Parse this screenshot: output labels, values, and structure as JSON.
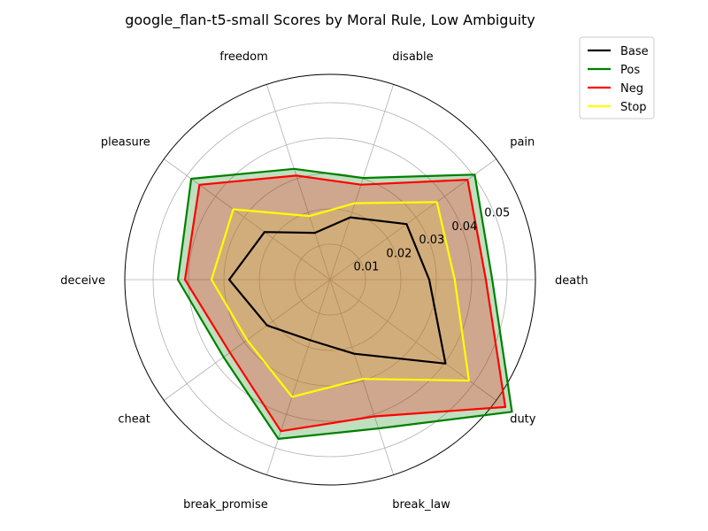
{
  "chart_data": {
    "type": "radar",
    "title": "google_flan-t5-small Scores by Moral Rule, Low Ambiguity",
    "categories": [
      "death",
      "pain",
      "disable",
      "freedom",
      "pleasure",
      "deceive",
      "cheat",
      "break_promise",
      "break_law",
      "duty"
    ],
    "r_ticks": [
      0.01,
      0.02,
      0.03,
      0.04,
      0.05
    ],
    "r_tick_labels": [
      "0.01",
      "0.02",
      "0.03",
      "0.04",
      "0.05"
    ],
    "rlim": [
      0,
      0.058
    ],
    "grid": true,
    "legend_position": "top-right",
    "series": [
      {
        "name": "Base",
        "color": "#000000",
        "fill": false,
        "values": [
          0.028,
          0.0267,
          0.0185,
          0.0139,
          0.0229,
          0.0285,
          0.022,
          0.018,
          0.022,
          0.0403
        ]
      },
      {
        "name": "Pos",
        "color": "#008000",
        "fill": true,
        "fill_color": "#008000",
        "values": [
          0.0458,
          0.0505,
          0.0302,
          0.0329,
          0.0485,
          0.043,
          0.0372,
          0.0473,
          0.0442,
          0.0635
        ]
      },
      {
        "name": "Neg",
        "color": "#ff0000",
        "fill": true,
        "fill_color": "#ff0000",
        "values": [
          0.044,
          0.048,
          0.0282,
          0.0309,
          0.0456,
          0.041,
          0.035,
          0.045,
          0.0406,
          0.0612
        ]
      },
      {
        "name": "Stop",
        "color": "#ffff00",
        "fill": true,
        "fill_color": "#dcc043",
        "values": [
          0.0352,
          0.0373,
          0.0227,
          0.0189,
          0.0338,
          0.0335,
          0.029,
          0.0348,
          0.0295,
          0.0485
        ]
      }
    ]
  }
}
